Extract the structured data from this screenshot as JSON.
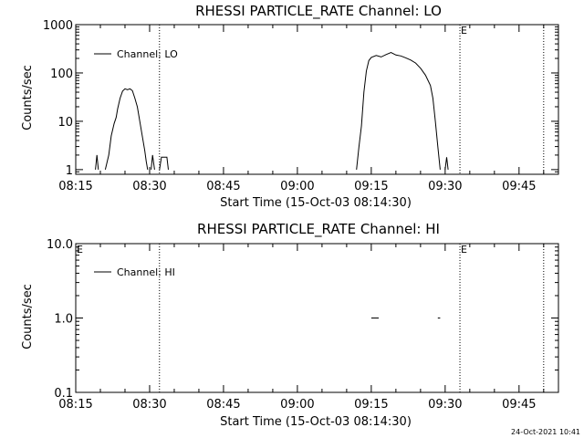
{
  "timestamp": "24-Oct-2021 10:41",
  "chart_data": [
    {
      "type": "line",
      "title": "RHESSI PARTICLE_RATE Channel: LO",
      "xlabel": "Start Time (15-Oct-03 08:14:30)",
      "ylabel": "Counts/sec",
      "yscale": "log",
      "xlim": [
        "08:15",
        "09:53"
      ],
      "ylim": [
        0.8,
        1000
      ],
      "xticks": [
        "08:15",
        "08:30",
        "08:45",
        "09:00",
        "09:15",
        "09:30",
        "09:45"
      ],
      "yticks": [
        {
          "value": 1,
          "label": "1"
        },
        {
          "value": 10,
          "label": "10"
        },
        {
          "value": 100,
          "label": "100"
        },
        {
          "value": 1000,
          "label": "1000"
        }
      ],
      "vlines": [
        "08:32",
        "09:33",
        "09:50"
      ],
      "markers": [
        {
          "x": "09:33",
          "label": "E"
        }
      ],
      "legend": {
        "label": "Channel: LO",
        "position": "top-left"
      },
      "series": [
        {
          "name": "Channel: LO",
          "segments": [
            [
              [
                "08:19",
                1
              ],
              [
                "08:19.3",
                2
              ],
              [
                "08:19.6",
                1
              ]
            ],
            [
              [
                "08:21",
                1
              ],
              [
                "08:21.7",
                2
              ],
              [
                "08:22.2",
                5
              ],
              [
                "08:22.8",
                9
              ],
              [
                "08:23.2",
                12
              ],
              [
                "08:23.5",
                18
              ],
              [
                "08:24",
                30
              ],
              [
                "08:24.5",
                42
              ],
              [
                "08:25",
                47
              ],
              [
                "08:25.5",
                45
              ],
              [
                "08:26",
                47
              ],
              [
                "08:26.5",
                43
              ],
              [
                "08:27",
                30
              ],
              [
                "08:27.5",
                20
              ],
              [
                "08:28",
                10
              ],
              [
                "08:28.5",
                5
              ],
              [
                "08:29",
                2.5
              ],
              [
                "08:29.3",
                1.5
              ],
              [
                "08:29.6",
                1
              ]
            ],
            [
              [
                "08:30.3",
                1
              ],
              [
                "08:30.6",
                2
              ],
              [
                "08:31",
                1
              ]
            ],
            [
              [
                "08:32",
                1
              ],
              [
                "08:32.4",
                1.8
              ],
              [
                "08:33.5",
                1.8
              ],
              [
                "08:33.8",
                1
              ]
            ],
            [
              [
                "09:12",
                1
              ],
              [
                "09:12.5",
                3
              ],
              [
                "09:13",
                8
              ],
              [
                "09:13.5",
                40
              ],
              [
                "09:14",
                110
              ],
              [
                "09:14.5",
                180
              ],
              [
                "09:15",
                210
              ],
              [
                "09:16",
                230
              ],
              [
                "09:17",
                215
              ],
              [
                "09:18",
                240
              ],
              [
                "09:19",
                265
              ],
              [
                "09:20",
                235
              ],
              [
                "09:21",
                225
              ],
              [
                "09:22",
                205
              ],
              [
                "09:23",
                185
              ],
              [
                "09:24",
                160
              ],
              [
                "09:25",
                125
              ],
              [
                "09:26",
                90
              ],
              [
                "09:27",
                55
              ],
              [
                "09:27.5",
                30
              ],
              [
                "09:28",
                10
              ],
              [
                "09:28.5",
                3
              ],
              [
                "09:29",
                1
              ]
            ],
            [
              [
                "09:30",
                1
              ],
              [
                "09:30.3",
                1.8
              ],
              [
                "09:30.6",
                1
              ]
            ]
          ]
        }
      ]
    },
    {
      "type": "line",
      "title": "RHESSI PARTICLE_RATE Channel: HI",
      "xlabel": "Start Time (15-Oct-03 08:14:30)",
      "ylabel": "Counts/sec",
      "yscale": "log",
      "xlim": [
        "08:15",
        "09:53"
      ],
      "ylim": [
        0.1,
        10
      ],
      "xticks": [
        "08:15",
        "08:30",
        "08:45",
        "09:00",
        "09:15",
        "09:30",
        "09:45"
      ],
      "yticks": [
        {
          "value": 0.1,
          "label": "0.1"
        },
        {
          "value": 1,
          "label": "1.0"
        },
        {
          "value": 10,
          "label": "10.0"
        }
      ],
      "vlines": [
        "08:15",
        "08:32",
        "09:33",
        "09:50"
      ],
      "markers": [
        {
          "x": "08:15",
          "label": "E"
        },
        {
          "x": "09:33",
          "label": "E"
        }
      ],
      "legend": {
        "label": "Channel: HI",
        "position": "top-left"
      },
      "series": [
        {
          "name": "Channel: HI",
          "segments": [
            [
              [
                "09:15",
                1
              ],
              [
                "09:16.5",
                1
              ]
            ],
            [
              [
                "09:28.5",
                1
              ],
              [
                "09:29",
                1
              ]
            ]
          ]
        }
      ]
    }
  ]
}
